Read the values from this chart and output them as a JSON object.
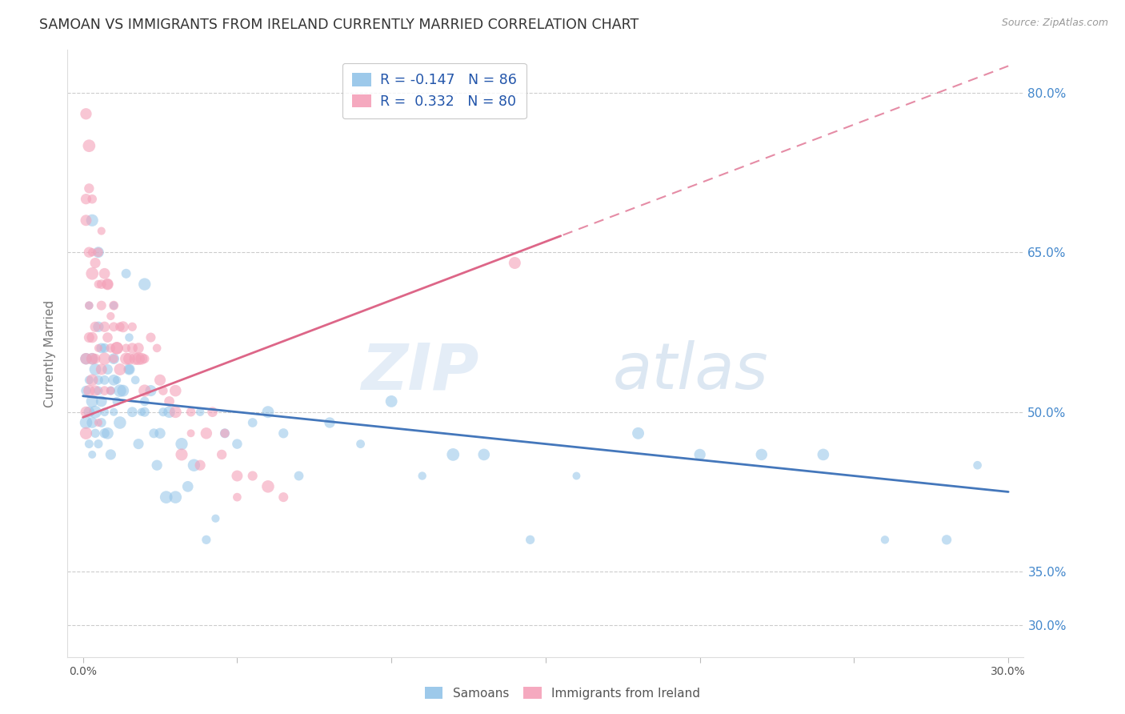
{
  "title": "SAMOAN VS IMMIGRANTS FROM IRELAND CURRENTLY MARRIED CORRELATION CHART",
  "source": "Source: ZipAtlas.com",
  "ylabel": "Currently Married",
  "right_yticks": [
    0.3,
    0.35,
    0.5,
    0.65,
    0.8
  ],
  "right_yticklabels": [
    "30.0%",
    "35.0%",
    "50.0%",
    "65.0%",
    "80.0%"
  ],
  "xticks": [
    0.0,
    0.05,
    0.1,
    0.15,
    0.2,
    0.25,
    0.3
  ],
  "xticklabels": [
    "0.0%",
    "",
    "",
    "",
    "",
    "",
    "30.0%"
  ],
  "xlim": [
    -0.005,
    0.305
  ],
  "ylim": [
    0.27,
    0.84
  ],
  "watermark": "ZIPatlas",
  "legend_blue_r": "-0.147",
  "legend_blue_n": "86",
  "legend_pink_r": "0.332",
  "legend_pink_n": "80",
  "blue_color": "#93c4e8",
  "pink_color": "#f4a0b8",
  "blue_line_color": "#4477bb",
  "pink_line_color": "#dd6688",
  "blue_marker_alpha": 0.55,
  "pink_marker_alpha": 0.6,
  "marker_size": 80,
  "blue_R": -0.147,
  "blue_N": 86,
  "pink_R": 0.332,
  "pink_N": 80,
  "blue_intercept": 0.515,
  "blue_slope": -0.3,
  "pink_intercept": 0.495,
  "pink_slope": 1.1,
  "pink_line_solid_end": 0.155,
  "pink_line_dashed_start": 0.155,
  "samoans_x": [
    0.001,
    0.001,
    0.001,
    0.002,
    0.002,
    0.002,
    0.002,
    0.003,
    0.003,
    0.003,
    0.003,
    0.004,
    0.004,
    0.004,
    0.005,
    0.005,
    0.005,
    0.005,
    0.006,
    0.006,
    0.006,
    0.007,
    0.007,
    0.007,
    0.008,
    0.008,
    0.009,
    0.009,
    0.01,
    0.01,
    0.01,
    0.011,
    0.011,
    0.012,
    0.012,
    0.013,
    0.014,
    0.015,
    0.015,
    0.016,
    0.017,
    0.018,
    0.019,
    0.02,
    0.02,
    0.022,
    0.023,
    0.024,
    0.025,
    0.026,
    0.027,
    0.028,
    0.03,
    0.032,
    0.034,
    0.036,
    0.038,
    0.04,
    0.043,
    0.046,
    0.05,
    0.055,
    0.06,
    0.065,
    0.07,
    0.08,
    0.09,
    0.1,
    0.11,
    0.12,
    0.13,
    0.145,
    0.16,
    0.18,
    0.2,
    0.22,
    0.24,
    0.26,
    0.28,
    0.29,
    0.003,
    0.005,
    0.007,
    0.01,
    0.015,
    0.02
  ],
  "samoans_y": [
    0.52,
    0.49,
    0.55,
    0.5,
    0.53,
    0.47,
    0.6,
    0.51,
    0.49,
    0.55,
    0.46,
    0.5,
    0.54,
    0.48,
    0.52,
    0.47,
    0.53,
    0.58,
    0.56,
    0.49,
    0.51,
    0.5,
    0.53,
    0.48,
    0.54,
    0.48,
    0.52,
    0.46,
    0.55,
    0.5,
    0.53,
    0.51,
    0.53,
    0.49,
    0.52,
    0.52,
    0.63,
    0.57,
    0.54,
    0.5,
    0.53,
    0.47,
    0.5,
    0.62,
    0.51,
    0.52,
    0.48,
    0.45,
    0.48,
    0.5,
    0.42,
    0.5,
    0.42,
    0.47,
    0.43,
    0.45,
    0.5,
    0.38,
    0.4,
    0.48,
    0.47,
    0.49,
    0.5,
    0.48,
    0.44,
    0.49,
    0.47,
    0.51,
    0.44,
    0.46,
    0.46,
    0.38,
    0.44,
    0.48,
    0.46,
    0.46,
    0.46,
    0.38,
    0.38,
    0.45,
    0.68,
    0.65,
    0.56,
    0.6,
    0.54,
    0.5
  ],
  "ireland_x": [
    0.001,
    0.001,
    0.001,
    0.002,
    0.002,
    0.002,
    0.003,
    0.003,
    0.003,
    0.004,
    0.004,
    0.004,
    0.005,
    0.005,
    0.005,
    0.006,
    0.006,
    0.007,
    0.007,
    0.007,
    0.008,
    0.008,
    0.009,
    0.009,
    0.01,
    0.01,
    0.011,
    0.012,
    0.013,
    0.014,
    0.015,
    0.016,
    0.017,
    0.018,
    0.019,
    0.02,
    0.022,
    0.024,
    0.026,
    0.028,
    0.03,
    0.032,
    0.035,
    0.038,
    0.042,
    0.046,
    0.05,
    0.055,
    0.06,
    0.065,
    0.001,
    0.001,
    0.002,
    0.002,
    0.003,
    0.003,
    0.004,
    0.005,
    0.006,
    0.006,
    0.007,
    0.008,
    0.009,
    0.01,
    0.011,
    0.012,
    0.014,
    0.016,
    0.018,
    0.02,
    0.025,
    0.03,
    0.035,
    0.04,
    0.045,
    0.05,
    0.001,
    0.002,
    0.003,
    0.14
  ],
  "ireland_y": [
    0.55,
    0.5,
    0.48,
    0.57,
    0.6,
    0.52,
    0.53,
    0.57,
    0.55,
    0.58,
    0.52,
    0.55,
    0.56,
    0.62,
    0.49,
    0.54,
    0.6,
    0.58,
    0.55,
    0.52,
    0.57,
    0.62,
    0.56,
    0.52,
    0.6,
    0.55,
    0.56,
    0.54,
    0.58,
    0.55,
    0.55,
    0.58,
    0.55,
    0.56,
    0.55,
    0.52,
    0.57,
    0.56,
    0.52,
    0.51,
    0.5,
    0.46,
    0.48,
    0.45,
    0.5,
    0.48,
    0.42,
    0.44,
    0.43,
    0.42,
    0.7,
    0.78,
    0.71,
    0.75,
    0.63,
    0.7,
    0.64,
    0.65,
    0.62,
    0.67,
    0.63,
    0.62,
    0.59,
    0.58,
    0.56,
    0.58,
    0.56,
    0.56,
    0.55,
    0.55,
    0.53,
    0.52,
    0.5,
    0.48,
    0.46,
    0.44,
    0.68,
    0.65,
    0.65,
    0.64
  ]
}
